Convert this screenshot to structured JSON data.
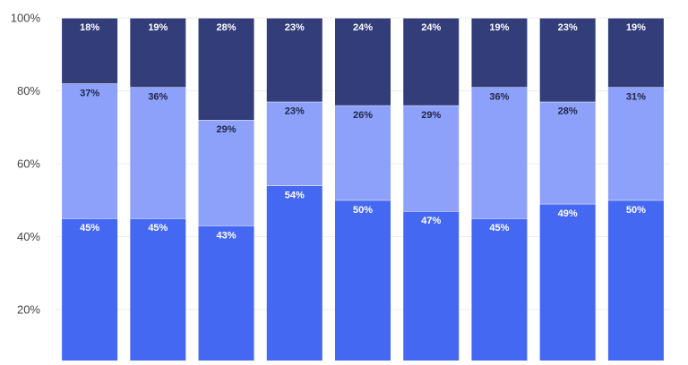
{
  "chart_data": {
    "type": "bar",
    "stacked": true,
    "categories": [
      "",
      "",
      "",
      "",
      "",
      "",
      "",
      "",
      ""
    ],
    "series": [
      {
        "values": [
          45,
          45,
          43,
          54,
          50,
          47,
          45,
          49,
          50
        ],
        "color": "#4568f2",
        "label_color": "#ffffff"
      },
      {
        "values": [
          37,
          36,
          29,
          23,
          26,
          29,
          36,
          28,
          31
        ],
        "color": "#8da0fa",
        "label_color": "#1f2544"
      },
      {
        "values": [
          18,
          19,
          28,
          23,
          24,
          24,
          19,
          23,
          19
        ],
        "color": "#323d79",
        "label_color": "#ffffff"
      }
    ],
    "ylim": [
      0,
      100
    ],
    "yticks": [
      "20%",
      "40%",
      "60%",
      "80%",
      "100%"
    ],
    "ytick_values": [
      20,
      40,
      60,
      80,
      100
    ],
    "value_suffix": "%",
    "grid": true,
    "legend": "none"
  }
}
